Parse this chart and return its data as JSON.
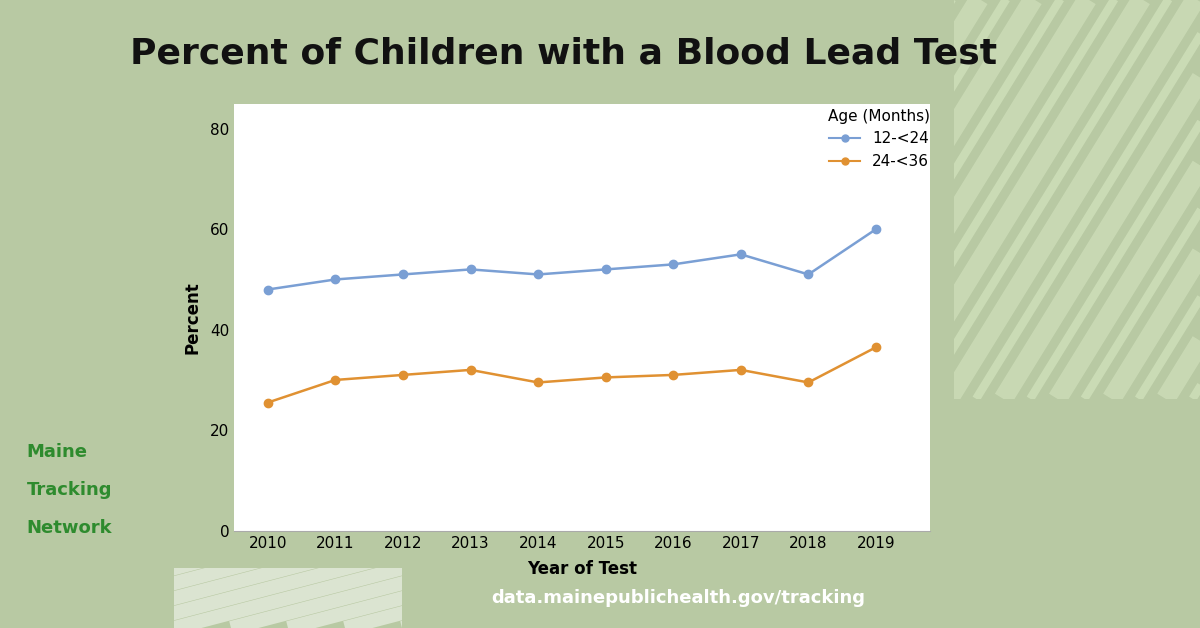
{
  "title": "Percent of Children with a Blood Lead Test",
  "xlabel": "Year of Test",
  "ylabel": "Percent",
  "years": [
    2010,
    2011,
    2012,
    2013,
    2014,
    2015,
    2016,
    2017,
    2018,
    2019
  ],
  "series": [
    {
      "label": "12-<24",
      "color": "#7a9fd4",
      "marker": "o",
      "values": [
        48,
        50,
        51,
        52,
        51,
        52,
        53,
        55,
        51,
        60
      ]
    },
    {
      "label": "24-<36",
      "color": "#e09132",
      "marker": "o",
      "values": [
        25.5,
        30,
        31,
        32,
        29.5,
        30.5,
        31,
        32,
        29.5,
        36.5
      ]
    }
  ],
  "legend_title": "Age (Months)",
  "ylim": [
    0,
    85
  ],
  "yticks": [
    0,
    20,
    40,
    60,
    80
  ],
  "color_header_bg": "#b8c9a3",
  "color_chart_bg": "#ffffff",
  "color_teal_dark": "#2e8b8b",
  "color_teal_mid": "#3aacac",
  "color_stripe_green_light": "#cdddb8",
  "color_stripe_green_lighter": "#ddeec8",
  "color_white": "#ffffff",
  "color_maine_green": "#2e8b2e",
  "color_footer_bg": "#f0f0f0",
  "title_fontsize": 26,
  "axis_label_fontsize": 12,
  "tick_fontsize": 11,
  "legend_fontsize": 11,
  "url_text": "data.mainepublichealth.gov/tracking",
  "maine_lines": [
    "Maine",
    "Tracking",
    "Network"
  ]
}
